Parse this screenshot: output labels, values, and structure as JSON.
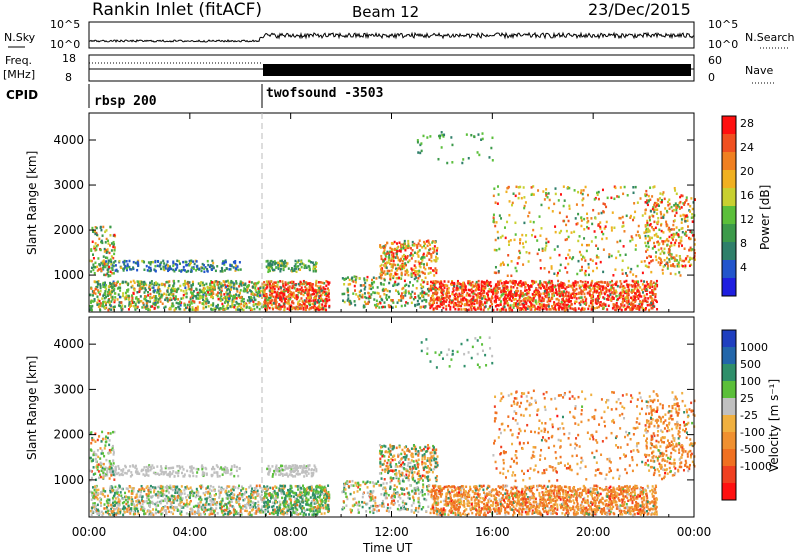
{
  "header": {
    "station": "Rankin Inlet (fitACF)",
    "beam": "Beam 12",
    "date": "23/Dec/2015"
  },
  "sky_panel": {
    "left_label": "N.Sky",
    "left_ticks": [
      "10^5",
      "10^0"
    ],
    "right_ticks": [
      "10^5",
      "10^0"
    ],
    "right_label": "N.Search"
  },
  "freq_panel": {
    "left_label_1": "Freq.",
    "left_label_2": "[MHz]",
    "left_ticks": [
      "18",
      "8"
    ],
    "right_ticks": [
      "60",
      "0"
    ],
    "right_label": "Nave"
  },
  "cpid": {
    "label": "CPID",
    "programs": [
      {
        "name": "rbsp 200",
        "start_hour": 0
      },
      {
        "name": "twofsound -3503",
        "start_hour": 6.9
      }
    ]
  },
  "chart_data": [
    {
      "type": "heatmap",
      "name": "power",
      "ylabel": "Slant Range [km]",
      "xlabel": "Time UT",
      "x_ticks": [
        "00:00",
        "04:00",
        "08:00",
        "12:00",
        "16:00",
        "20:00",
        "00:00"
      ],
      "y_ticks": [
        "1000",
        "2000",
        "3000",
        "4000"
      ],
      "xlim_hours": [
        0,
        24
      ],
      "ylim_km": [
        180,
        4600
      ],
      "colorbar": {
        "label": "Power [dB]",
        "ticks": [
          "4",
          "8",
          "12",
          "16",
          "20",
          "24",
          "28"
        ],
        "colors": [
          "#1f1fe0",
          "#2255cc",
          "#2f7f6a",
          "#3c9a4a",
          "#5bbf3a",
          "#c8d030",
          "#f0b020",
          "#f08020",
          "#f05020",
          "#ff1010"
        ]
      }
    },
    {
      "type": "heatmap",
      "name": "velocity",
      "ylabel": "Slant Range [km]",
      "xlabel": "Time UT",
      "x_ticks": [
        "00:00",
        "04:00",
        "08:00",
        "12:00",
        "16:00",
        "20:00",
        "00:00"
      ],
      "y_ticks": [
        "1000",
        "2000",
        "3000",
        "4000"
      ],
      "xlim_hours": [
        0,
        24
      ],
      "ylim_km": [
        180,
        4600
      ],
      "colorbar": {
        "label": "Velocity [m s⁻¹]",
        "ticks": [
          "1000",
          "500",
          "100",
          "25",
          "-25",
          "-100",
          "-500",
          "-1000"
        ],
        "colors": [
          "#1f3fbf",
          "#2266aa",
          "#2f8f6a",
          "#5bbf3a",
          "#c0c0c0",
          "#f0b040",
          "#f09030",
          "#f07020",
          "#f04020",
          "#ff1010"
        ]
      }
    }
  ],
  "axis": {
    "time_label": "Time UT"
  }
}
